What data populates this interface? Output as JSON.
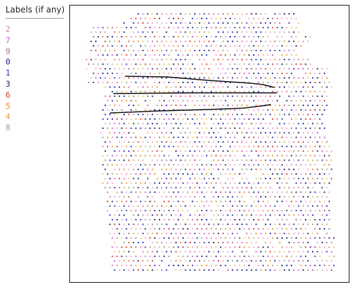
{
  "labels_panel": {
    "title": "Labels (if any)",
    "items": [
      {
        "label": "2",
        "color": "#e87fb9"
      },
      {
        "label": "7",
        "color": "#d65ed0"
      },
      {
        "label": "9",
        "color": "#b06e8a"
      },
      {
        "label": "0",
        "color": "#1f1f8f"
      },
      {
        "label": "1",
        "color": "#2f34c8"
      },
      {
        "label": "3",
        "color": "#1c2a7a"
      },
      {
        "label": "6",
        "color": "#e03a2a"
      },
      {
        "label": "5",
        "color": "#f08a30"
      },
      {
        "label": "4",
        "color": "#e2a23b"
      },
      {
        "label": "8",
        "color": "#8fb07f"
      }
    ]
  },
  "canvas": {
    "dot_colors": [
      "#f4a6c4",
      "#f4a6c4",
      "#f4a6c4",
      "#e87fb9",
      "#d65ed0",
      "#b06e8a",
      "#1f1f8f",
      "#1f1f8f",
      "#2f34c8",
      "#2f34c8",
      "#1c2a7a",
      "#e03a2a",
      "#f08a30",
      "#e2a23b",
      "#f2c46a",
      "#8fb07f"
    ],
    "stroke_color": "#111111"
  }
}
